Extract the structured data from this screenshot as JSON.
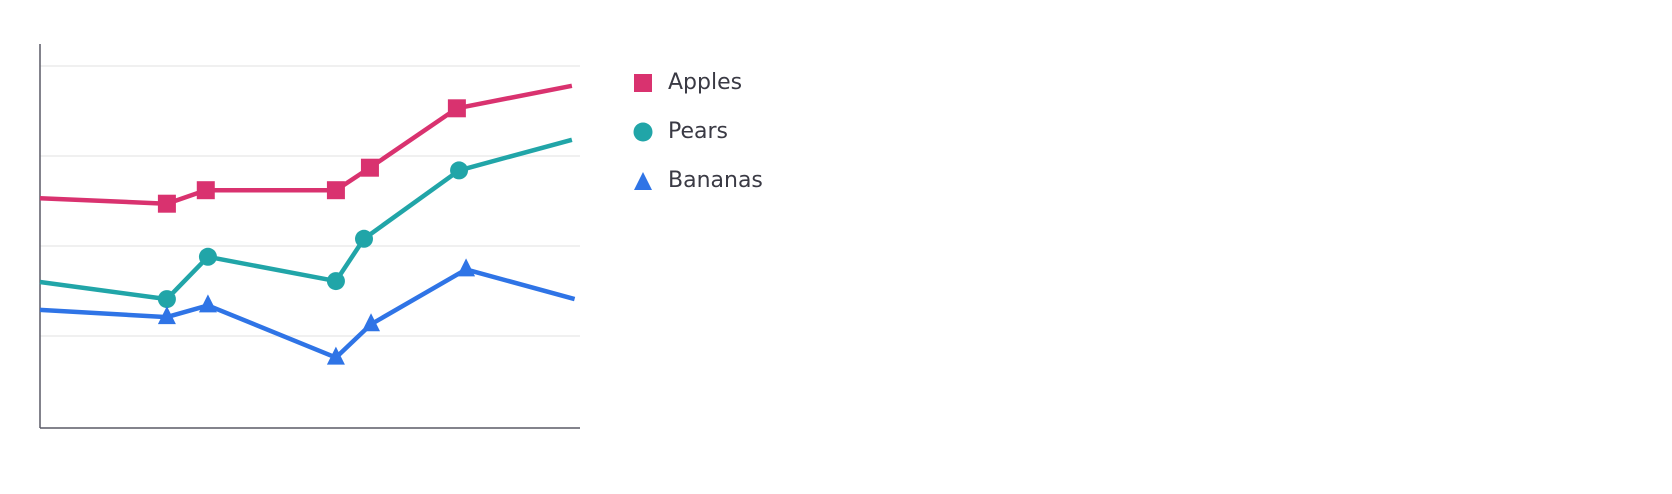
{
  "chart_data": {
    "type": "line",
    "title": "",
    "xlabel": "",
    "ylabel": "",
    "xlim": [
      0,
      100
    ],
    "ylim": [
      0,
      4.2
    ],
    "grid": {
      "horizontal": true,
      "vertical": false,
      "y_lines": [
        1,
        2,
        3,
        4
      ]
    },
    "tick_labels_shown": false,
    "legend": {
      "placement": "right",
      "entries": [
        "Apples",
        "Pears",
        "Bananas"
      ]
    },
    "series": [
      {
        "name": "Apples",
        "color": "#d9326f",
        "marker": "square",
        "x": [
          0,
          23.5,
          30.7,
          54.8,
          61.1,
          77.2,
          98.5
        ],
        "y": [
          2.53,
          2.47,
          2.62,
          2.62,
          2.87,
          3.53,
          3.78
        ]
      },
      {
        "name": "Pears",
        "color": "#21a5a8",
        "marker": "circle",
        "x": [
          0,
          23.5,
          31.1,
          54.8,
          60.0,
          77.6,
          98.5
        ],
        "y": [
          1.6,
          1.41,
          1.88,
          1.61,
          2.08,
          2.84,
          3.18
        ]
      },
      {
        "name": "Bananas",
        "color": "#2f74e6",
        "marker": "triangle",
        "x": [
          0,
          23.5,
          31.1,
          54.8,
          61.3,
          78.9,
          99.0
        ],
        "y": [
          1.29,
          1.21,
          1.34,
          0.76,
          1.13,
          1.74,
          1.41
        ]
      }
    ]
  }
}
